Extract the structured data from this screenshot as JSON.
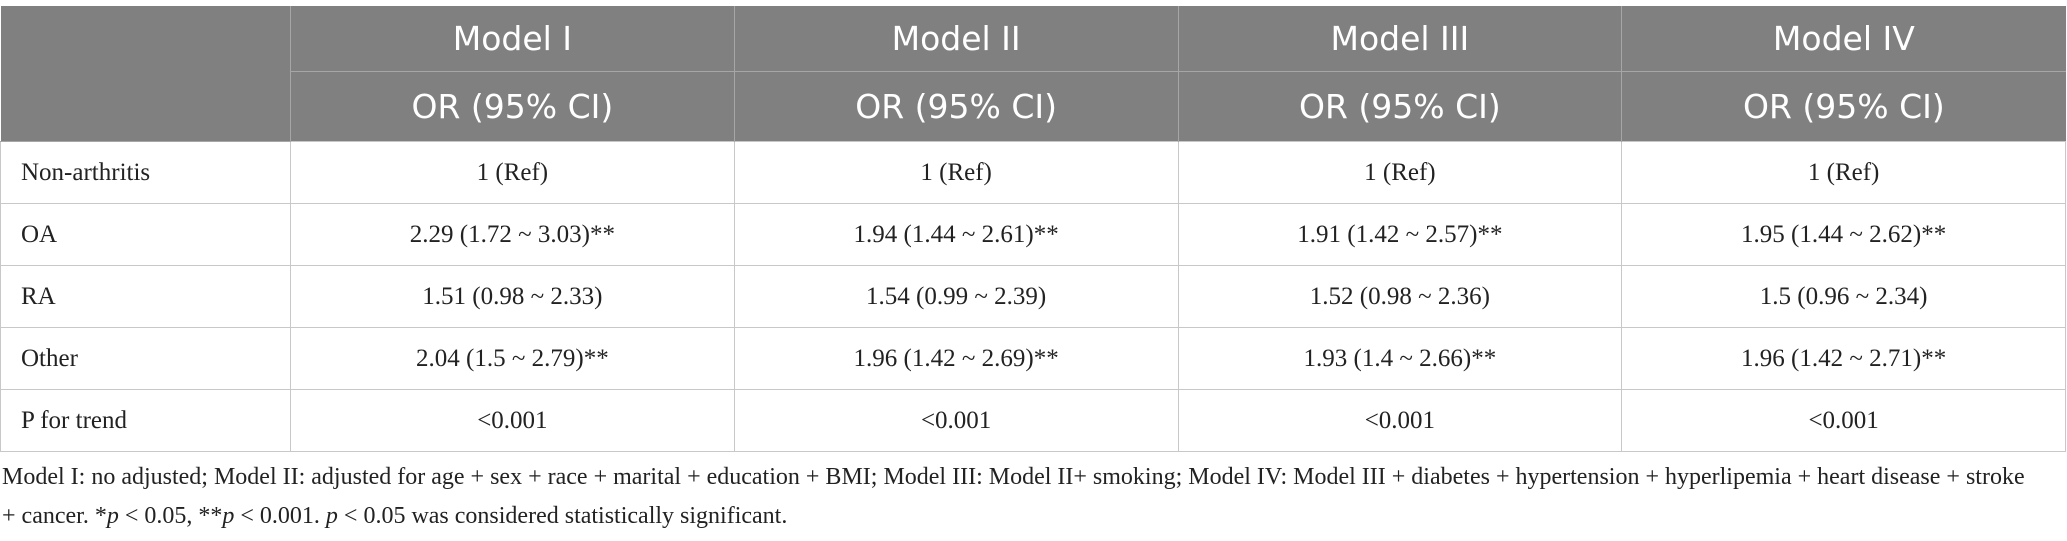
{
  "table": {
    "columns": [
      "Model I",
      "Model II",
      "Model III",
      "Model IV"
    ],
    "subheaders": [
      "OR (95% CI)",
      "OR (95% CI)",
      "OR (95% CI)",
      "OR (95% CI)"
    ],
    "rows": [
      [
        "Non-arthritis",
        "1 (Ref)",
        "1 (Ref)",
        "1 (Ref)",
        "1 (Ref)"
      ],
      [
        "OA",
        "2.29 (1.72 ~ 3.03)**",
        "1.94 (1.44 ~ 2.61)**",
        "1.91 (1.42 ~ 2.57)**",
        "1.95 (1.44 ~ 2.62)**"
      ],
      [
        "RA",
        "1.51 (0.98 ~ 2.33)",
        "1.54 (0.99 ~ 2.39)",
        "1.52 (0.98 ~ 2.36)",
        "1.5 (0.96 ~ 2.34)"
      ],
      [
        "Other",
        "2.04 (1.5 ~ 2.79)**",
        "1.96 (1.42 ~ 2.69)**",
        "1.93 (1.4 ~ 2.66)**",
        "1.96 (1.42 ~ 2.71)**"
      ],
      [
        "P for trend",
        "<0.001",
        "<0.001",
        "<0.001",
        "<0.001"
      ]
    ]
  },
  "footnote": [
    "Model I: no adjusted; Model II: adjusted for age + sex + race + marital + education + BMI; Model III: Model II+ smoking; Model IV: Model III + diabetes + hypertension + hyperlipemia + heart disease + stroke + cancer. *",
    "p",
    " < 0.05, **",
    "p",
    " < 0.001. ",
    "p",
    " < 0.05 was considered statistically significant."
  ]
}
